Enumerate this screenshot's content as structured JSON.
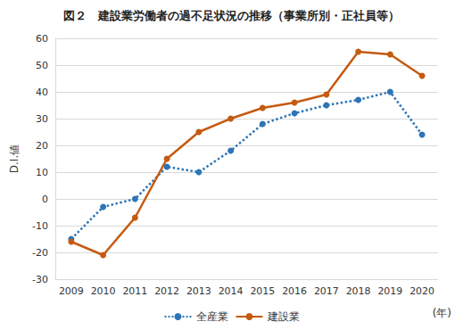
{
  "chart_data": {
    "type": "line",
    "title": "図２　建設業労働者の過不足状況の推移（事業所別・正社員等）",
    "ylabel": "D.I.値",
    "xlabel": "(年)",
    "categories": [
      "2009",
      "2010",
      "2011",
      "2012",
      "2013",
      "2014",
      "2015",
      "2016",
      "2017",
      "2018",
      "2019",
      "2020"
    ],
    "series": [
      {
        "name": "全産業",
        "color": "#2E75B6",
        "line_style": "dotted",
        "marker": "circle",
        "values": [
          -15,
          -3,
          0,
          12,
          10,
          18,
          28,
          32,
          35,
          37,
          40,
          24
        ]
      },
      {
        "name": "建設業",
        "color": "#C55A11",
        "line_style": "solid",
        "marker": "circle",
        "values": [
          -16,
          -21,
          -7,
          15,
          25,
          30,
          34,
          36,
          39,
          55,
          54,
          46
        ]
      }
    ],
    "ylim": [
      -30,
      60
    ],
    "yticks": [
      -30,
      -20,
      -10,
      0,
      10,
      20,
      30,
      40,
      50,
      60
    ],
    "grid": true,
    "legend": "bottom"
  }
}
